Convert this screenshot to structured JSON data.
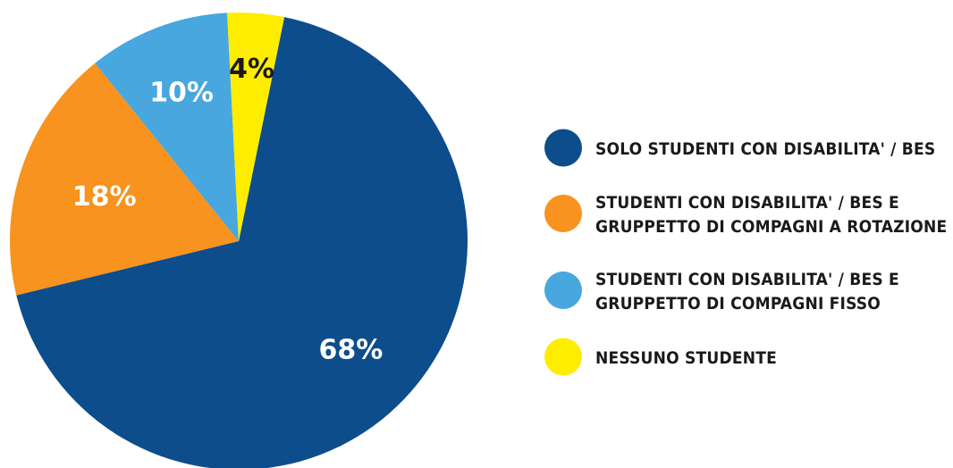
{
  "chart_data": {
    "type": "pie",
    "title": "",
    "slices": [
      {
        "label": "SOLO STUDENTI CON DISABILITA' / BES",
        "value": 68,
        "display": "68%",
        "color": "#0D4D8C",
        "text_color": "#ffffff"
      },
      {
        "label": "STUDENTI CON DISABILITA' / BES E GRUPPETTO DI COMPAGNI A ROTAZIONE",
        "value": 18,
        "display": "18%",
        "color": "#F7931E",
        "text_color": "#ffffff"
      },
      {
        "label": "STUDENTI CON DISABILITA' / BES E GRUPPETTO DI COMPAGNI FISSO",
        "value": 10,
        "display": "10%",
        "color": "#47A7DE",
        "text_color": "#ffffff"
      },
      {
        "label": "NESSUNO STUDENTE",
        "value": 4,
        "display": "4%",
        "color": "#FFED00",
        "text_color": "#1a1a1a"
      }
    ],
    "legend": {
      "position": "right",
      "entries": [
        {
          "lines": [
            "SOLO STUDENTI CON DISABILITA' / BES"
          ],
          "color": "#0D4D8C"
        },
        {
          "lines": [
            "STUDENTI CON DISABILITA' / BES E",
            "GRUPPETTO DI COMPAGNI A ROTAZIONE"
          ],
          "color": "#F7931E"
        },
        {
          "lines": [
            "STUDENTI CON DISABILITA' / BES E",
            "GRUPPETTO DI COMPAGNI FISSO"
          ],
          "color": "#47A7DE"
        },
        {
          "lines": [
            "NESSUNO STUDENTE"
          ],
          "color": "#FFED00"
        }
      ]
    }
  }
}
